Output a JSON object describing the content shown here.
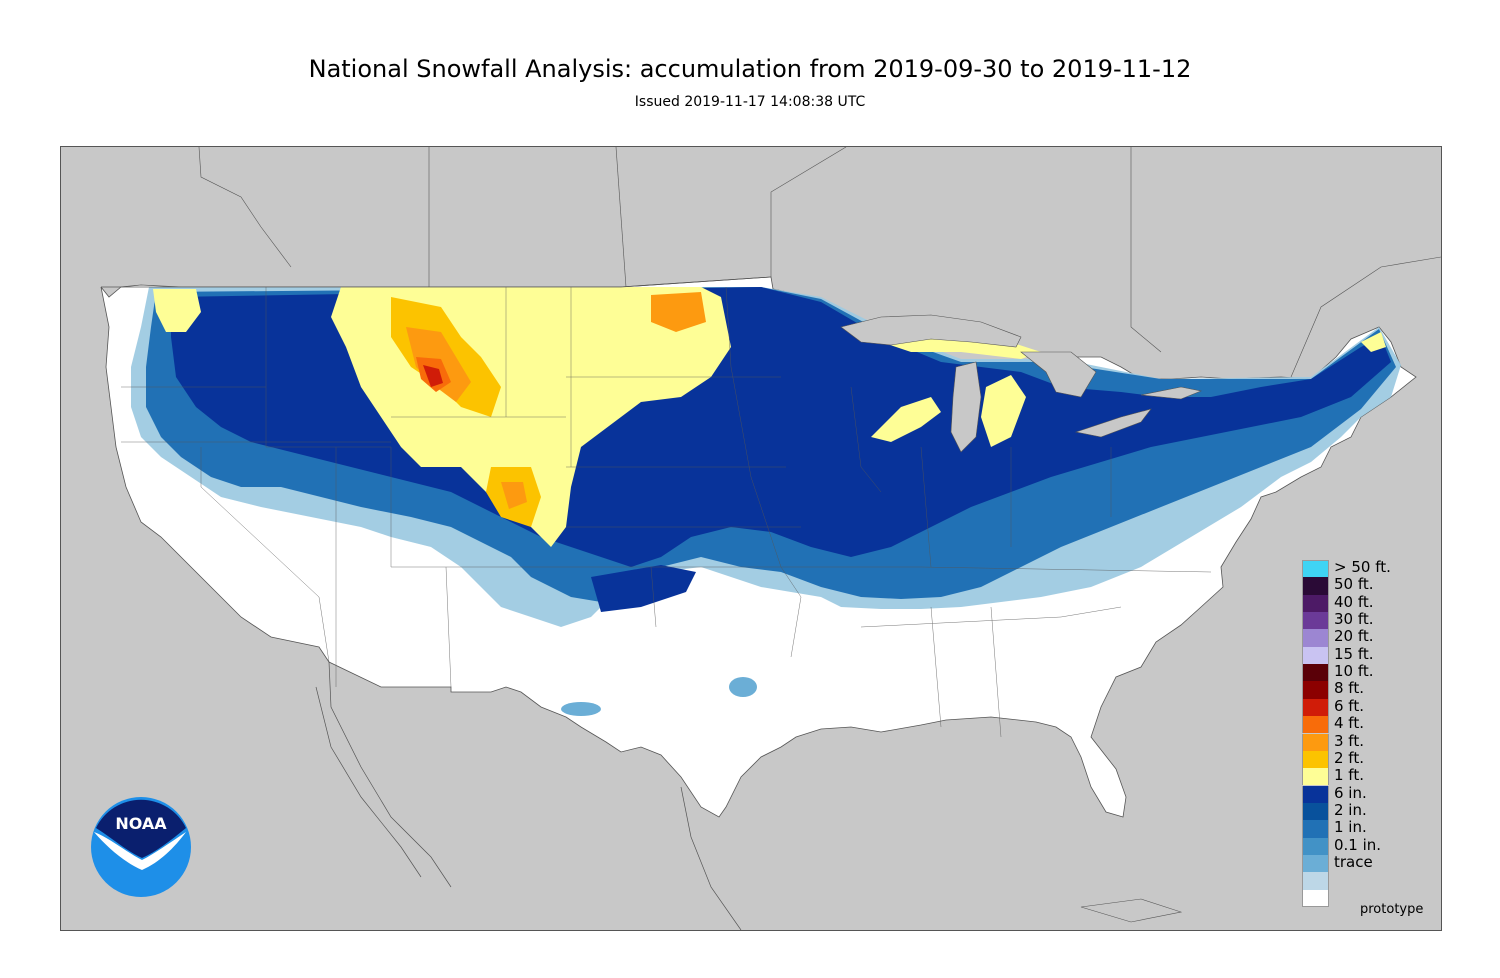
{
  "header": {
    "title": "National Snowfall Analysis: accumulation from 2019-09-30 to 2019-11-12",
    "subtitle": "Issued 2019-11-17 14:08:38 UTC"
  },
  "map": {
    "land_color": "#ffffff",
    "water_color": "#c8c8c8",
    "border_color": "#555555"
  },
  "legend": {
    "items": [
      {
        "label": "> 50 ft.",
        "color": "#3fd4f4"
      },
      {
        "label": "50 ft.",
        "color": "#2a0a36"
      },
      {
        "label": "40 ft.",
        "color": "#4d1a66"
      },
      {
        "label": "30 ft.",
        "color": "#6b3a98"
      },
      {
        "label": "20 ft.",
        "color": "#9c86d2"
      },
      {
        "label": "15 ft.",
        "color": "#c9c3f2"
      },
      {
        "label": "10 ft.",
        "color": "#5a0008"
      },
      {
        "label": "8 ft.",
        "color": "#8c0000"
      },
      {
        "label": "6 ft.",
        "color": "#d01c08"
      },
      {
        "label": "4 ft.",
        "color": "#f86c0a"
      },
      {
        "label": "3 ft.",
        "color": "#fd9a10"
      },
      {
        "label": "2 ft.",
        "color": "#fcc300"
      },
      {
        "label": "1 ft.",
        "color": "#fefe96"
      },
      {
        "label": "6 in.",
        "color": "#08339a"
      },
      {
        "label": "2 in.",
        "color": "#08519c"
      },
      {
        "label": "1 in.",
        "color": "#2171b5"
      },
      {
        "label": "0.1 in.",
        "color": "#4292c6"
      },
      {
        "label": "trace",
        "color": "#6baed6"
      },
      {
        "label": "",
        "color": "#bdd7e7"
      },
      {
        "label": "",
        "color": "#ffffff"
      }
    ]
  },
  "footer": {
    "note": "prototype"
  },
  "logo": {
    "text": "NOAA",
    "dark": "#0a1f6e",
    "light": "#1e8fe8"
  }
}
